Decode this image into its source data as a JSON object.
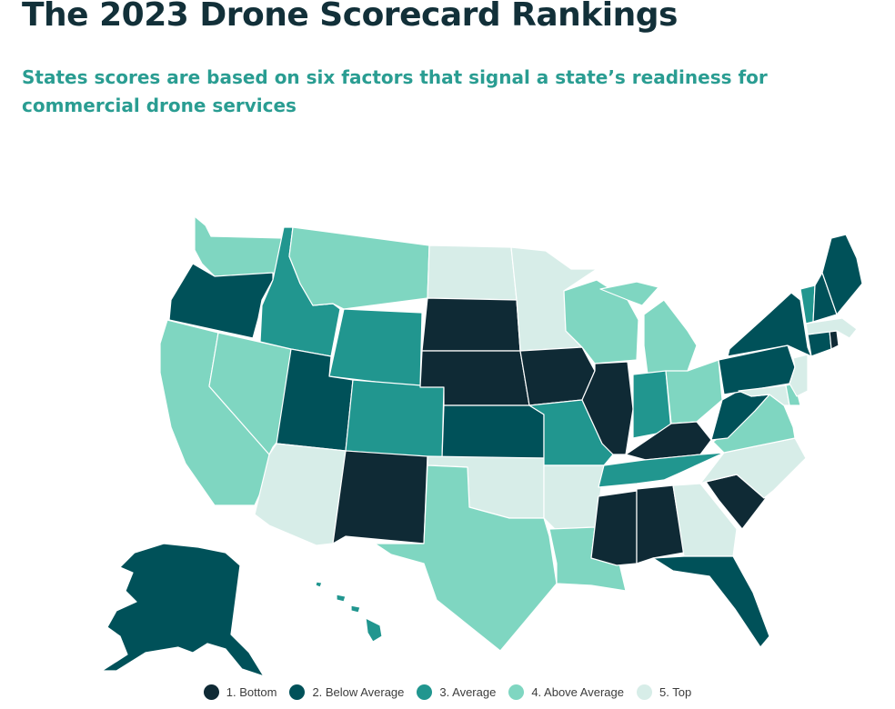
{
  "title": "The 2023 Drone Scorecard Rankings",
  "subtitle": "States scores are based on six factors that signal a state’s readiness for commercial drone services",
  "colors": {
    "1": "#0f2a35",
    "2": "#005159",
    "3": "#21968f",
    "4": "#7fd6c1",
    "5": "#d7ede8"
  },
  "legend": [
    {
      "key": "1",
      "label": "1. Bottom"
    },
    {
      "key": "2",
      "label": "2. Below Average"
    },
    {
      "key": "3",
      "label": "3. Average"
    },
    {
      "key": "4",
      "label": "4. Above Average"
    },
    {
      "key": "5",
      "label": "5. Top"
    }
  ],
  "states": [
    {
      "id": "WA",
      "name": "Washington",
      "tier": "4"
    },
    {
      "id": "OR",
      "name": "Oregon",
      "tier": "2"
    },
    {
      "id": "CA",
      "name": "California",
      "tier": "4"
    },
    {
      "id": "NV",
      "name": "Nevada",
      "tier": "4"
    },
    {
      "id": "ID",
      "name": "Idaho",
      "tier": "3"
    },
    {
      "id": "MT",
      "name": "Montana",
      "tier": "4"
    },
    {
      "id": "WY",
      "name": "Wyoming",
      "tier": "3"
    },
    {
      "id": "UT",
      "name": "Utah",
      "tier": "2"
    },
    {
      "id": "AZ",
      "name": "Arizona",
      "tier": "5"
    },
    {
      "id": "CO",
      "name": "Colorado",
      "tier": "3"
    },
    {
      "id": "NM",
      "name": "New Mexico",
      "tier": "1"
    },
    {
      "id": "ND",
      "name": "North Dakota",
      "tier": "5"
    },
    {
      "id": "SD",
      "name": "South Dakota",
      "tier": "1"
    },
    {
      "id": "NE",
      "name": "Nebraska",
      "tier": "1"
    },
    {
      "id": "KS",
      "name": "Kansas",
      "tier": "2"
    },
    {
      "id": "OK",
      "name": "Oklahoma",
      "tier": "5"
    },
    {
      "id": "TX",
      "name": "Texas",
      "tier": "4"
    },
    {
      "id": "MN",
      "name": "Minnesota",
      "tier": "5"
    },
    {
      "id": "IA",
      "name": "Iowa",
      "tier": "1"
    },
    {
      "id": "MO",
      "name": "Missouri",
      "tier": "3"
    },
    {
      "id": "AR",
      "name": "Arkansas",
      "tier": "5"
    },
    {
      "id": "LA",
      "name": "Louisiana",
      "tier": "4"
    },
    {
      "id": "WI",
      "name": "Wisconsin",
      "tier": "4"
    },
    {
      "id": "IL",
      "name": "Illinois",
      "tier": "1"
    },
    {
      "id": "MI",
      "name": "Michigan",
      "tier": "4"
    },
    {
      "id": "IN",
      "name": "Indiana",
      "tier": "3"
    },
    {
      "id": "OH",
      "name": "Ohio",
      "tier": "4"
    },
    {
      "id": "KY",
      "name": "Kentucky",
      "tier": "1"
    },
    {
      "id": "TN",
      "name": "Tennessee",
      "tier": "3"
    },
    {
      "id": "MS",
      "name": "Mississippi",
      "tier": "1"
    },
    {
      "id": "AL",
      "name": "Alabama",
      "tier": "1"
    },
    {
      "id": "GA",
      "name": "Georgia",
      "tier": "5"
    },
    {
      "id": "FL",
      "name": "Florida",
      "tier": "2"
    },
    {
      "id": "SC",
      "name": "South Carolina",
      "tier": "1"
    },
    {
      "id": "NC",
      "name": "North Carolina",
      "tier": "5"
    },
    {
      "id": "VA",
      "name": "Virginia",
      "tier": "4"
    },
    {
      "id": "WV",
      "name": "West Virginia",
      "tier": "2"
    },
    {
      "id": "PA",
      "name": "Pennsylvania",
      "tier": "2"
    },
    {
      "id": "NY",
      "name": "New York",
      "tier": "2"
    },
    {
      "id": "MD",
      "name": "Maryland",
      "tier": "5"
    },
    {
      "id": "DE",
      "name": "Delaware",
      "tier": "4"
    },
    {
      "id": "NJ",
      "name": "New Jersey",
      "tier": "5"
    },
    {
      "id": "CT",
      "name": "Connecticut",
      "tier": "2"
    },
    {
      "id": "RI",
      "name": "Rhode Island",
      "tier": "1"
    },
    {
      "id": "MA",
      "name": "Massachusetts",
      "tier": "5"
    },
    {
      "id": "VT",
      "name": "Vermont",
      "tier": "3"
    },
    {
      "id": "NH",
      "name": "New Hampshire",
      "tier": "2"
    },
    {
      "id": "ME",
      "name": "Maine",
      "tier": "2"
    },
    {
      "id": "AK",
      "name": "Alaska",
      "tier": "2"
    },
    {
      "id": "HI",
      "name": "Hawaii",
      "tier": "3"
    }
  ]
}
